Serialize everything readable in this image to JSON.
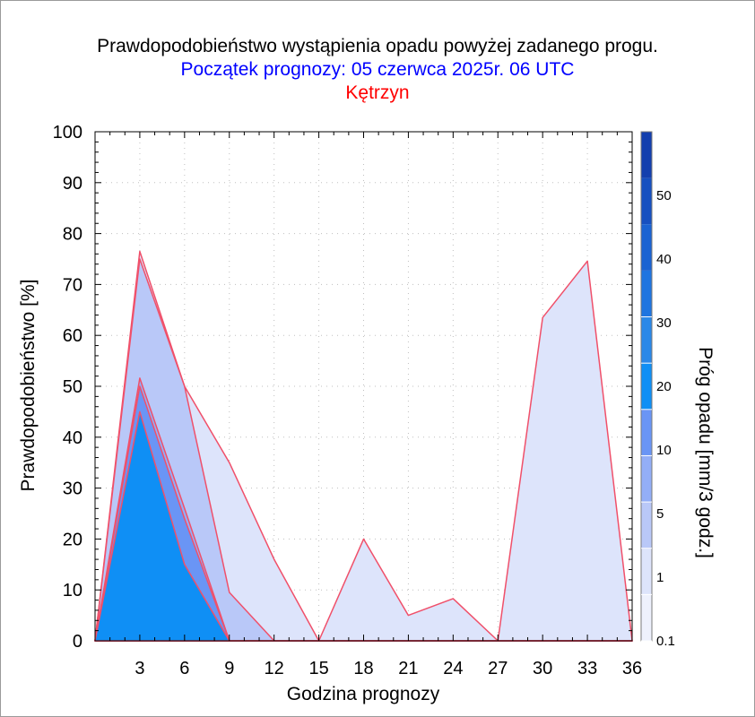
{
  "titles": {
    "line1": "Prawdopodobieństwo wystąpienia opadu powyżej zadanego progu.",
    "line2": "Początek prognozy: 05 czerwca 2025r. 06 UTC",
    "line3": "Kętrzyn"
  },
  "colors": {
    "title1": "#000000",
    "title2": "#0000ff",
    "title3": "#ff0000",
    "series_outline": "#f0506a",
    "grid": "#bfbfbf"
  },
  "chart_data": {
    "type": "area",
    "title": "Prawdopodobieństwo wystąpienia opadu powyżej zadanego progu.",
    "xlabel": "Godzina prognozy",
    "ylabel": "Prawdopodobieństwo [%]",
    "xlim": [
      0,
      36
    ],
    "ylim": [
      0,
      100
    ],
    "x_ticks": [
      3,
      6,
      9,
      12,
      15,
      18,
      21,
      24,
      27,
      30,
      33,
      36
    ],
    "y_ticks": [
      0,
      10,
      20,
      30,
      40,
      50,
      60,
      70,
      80,
      90,
      100
    ],
    "grid": true,
    "x": [
      0,
      3,
      6,
      9,
      12,
      15,
      18,
      21,
      24,
      27,
      30,
      33,
      36
    ],
    "series": [
      {
        "threshold": 0.1,
        "color": "#dde4fb",
        "values": [
          0,
          76.5,
          50,
          35,
          16,
          0,
          20,
          5,
          8.3,
          0,
          63.5,
          74.6,
          0
        ]
      },
      {
        "threshold": 1,
        "color": "#b9c8f8",
        "values": [
          0,
          75,
          50,
          9.5,
          0,
          0,
          0,
          0,
          0,
          0,
          0,
          0,
          0
        ]
      },
      {
        "threshold": 5,
        "color": "#93aef7",
        "values": [
          0,
          51.6,
          26,
          0,
          0,
          0,
          0,
          0,
          0,
          0,
          0,
          0,
          0
        ]
      },
      {
        "threshold": 10,
        "color": "#6a95f5",
        "values": [
          0,
          50,
          24,
          0,
          0,
          0,
          0,
          0,
          0,
          0,
          0,
          0,
          0
        ]
      },
      {
        "threshold": 20,
        "color": "#0f8ff5",
        "values": [
          0,
          45,
          15,
          0,
          0,
          0,
          0,
          0,
          0,
          0,
          0,
          0,
          0
        ]
      }
    ],
    "colorbar": {
      "label": "Próg opadu [mm/3 godz.]",
      "tick_labels": [
        "0.1",
        "1",
        "5",
        "10",
        "20",
        "30",
        "40",
        "50"
      ],
      "colors": [
        "#eef1fd",
        "#dde4fb",
        "#b9c8f8",
        "#93aef7",
        "#6a95f5",
        "#0f8ff5",
        "#2a88e8",
        "#1f75e0",
        "#1a63d2",
        "#1650c0",
        "#133fae"
      ]
    }
  }
}
